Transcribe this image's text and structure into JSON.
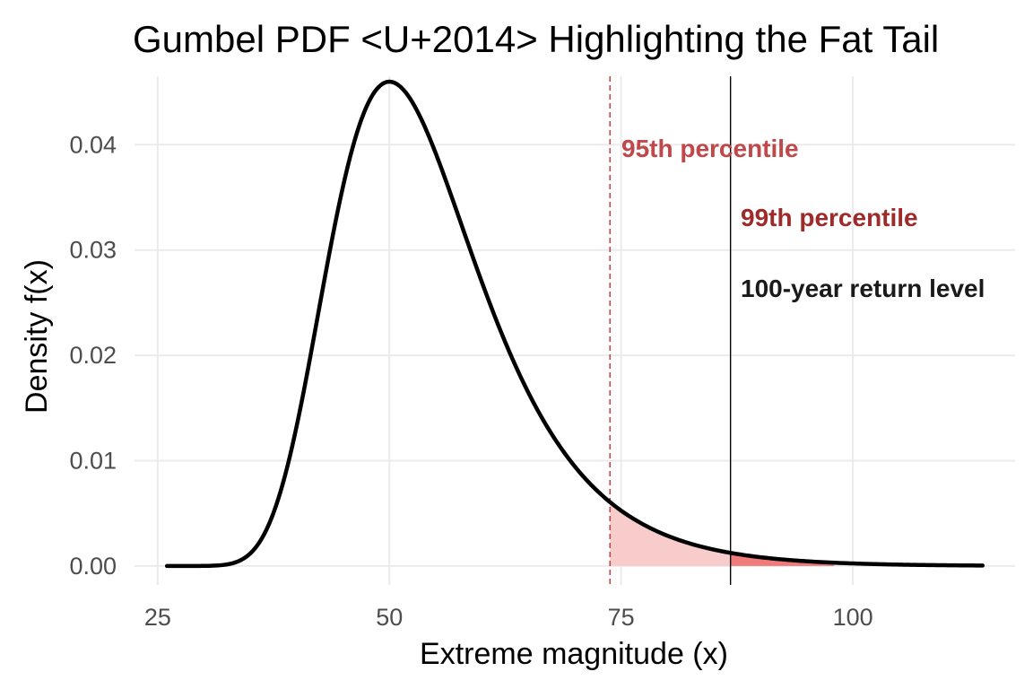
{
  "chart_data": {
    "type": "line",
    "title": "Gumbel PDF <U+2014> Highlighting the Fat Tail",
    "xlabel": "Extreme magnitude (x)",
    "ylabel": "Density  f(x)",
    "xlim": [
      22.5,
      117.5
    ],
    "ylim": [
      -0.0018,
      0.0465
    ],
    "x_ticks": [
      25,
      50,
      75,
      100
    ],
    "y_ticks": [
      0.0,
      0.01,
      0.02,
      0.03,
      0.04
    ],
    "x_tick_labels": [
      "25",
      "50",
      "75",
      "100"
    ],
    "y_tick_labels": [
      "0.00",
      "0.01",
      "0.02",
      "0.03",
      "0.04"
    ],
    "grid": true,
    "legend": "none",
    "distribution": {
      "name": "Gumbel",
      "location": 50,
      "scale": 8
    },
    "series": [
      {
        "color": "#000000",
        "x": [
          26,
          28,
          30,
          32,
          34,
          36,
          38,
          40,
          42,
          44,
          46,
          48,
          50,
          52,
          54,
          56,
          58,
          60,
          62,
          64,
          66,
          68,
          70,
          72,
          74,
          76,
          78,
          80,
          82,
          84,
          86,
          88,
          90,
          92,
          94,
          96,
          98,
          100,
          102,
          104,
          106,
          108,
          110,
          112,
          114
        ],
        "y": [
          0.0,
          0.0,
          0.0,
          0.0001,
          0.001,
          0.0044,
          0.0117,
          0.0217,
          0.0318,
          0.0399,
          0.0447,
          0.0464,
          0.046,
          0.044,
          0.0411,
          0.0377,
          0.0342,
          0.0307,
          0.0273,
          0.0241,
          0.0212,
          0.0186,
          0.0162,
          0.0141,
          0.0123,
          0.0107,
          0.0093,
          0.008,
          0.007,
          0.006,
          0.0052,
          0.0045,
          0.0039,
          0.0034,
          0.0029,
          0.0025,
          0.0022,
          0.0019,
          0.0016,
          0.0014,
          0.0012,
          0.001,
          0.0009,
          0.0008,
          0.0007
        ]
      }
    ],
    "reference_lines": [
      {
        "x": 73.8,
        "label": "95th percentile",
        "color": "#c0474a",
        "style": "dashed"
      },
      {
        "x": 86.8,
        "label": "99th percentile",
        "color": "#9f2a2a",
        "style": "solid"
      },
      {
        "x": 86.8,
        "label": "100-year return level",
        "color": "#1a1a1a",
        "style": "solid"
      }
    ],
    "shaded_tails": [
      {
        "from": 73.8,
        "to": 86.8,
        "color": "#f9cccc"
      },
      {
        "from": 86.8,
        "to": 98,
        "color": "#ef7b7b"
      }
    ]
  }
}
